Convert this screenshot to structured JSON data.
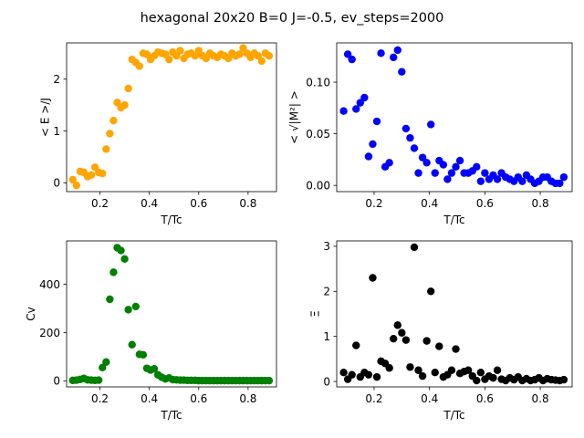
{
  "figure": {
    "suptitle": "hexagonal 20x20  B=0 J=-0.5, ev_steps=2000"
  },
  "chart_data": [
    {
      "type": "scatter",
      "id": "energy",
      "color": "#ffa500",
      "xlabel": "T/Tc",
      "ylabel": "< E >/J",
      "xlim": [
        0.065,
        0.915
      ],
      "ylim": [
        -0.17,
        2.7
      ],
      "xticks": [
        0.2,
        0.4,
        0.6,
        0.8
      ],
      "xtick_labels": [
        "0.2",
        "0.4",
        "0.6",
        "0.8"
      ],
      "yticks": [
        0,
        1,
        2
      ],
      "ytick_labels": [
        "0",
        "1",
        "2"
      ],
      "x": [
        0.09,
        0.105,
        0.12,
        0.135,
        0.15,
        0.165,
        0.18,
        0.195,
        0.21,
        0.225,
        0.24,
        0.255,
        0.27,
        0.285,
        0.3,
        0.315,
        0.33,
        0.345,
        0.36,
        0.375,
        0.39,
        0.405,
        0.42,
        0.435,
        0.45,
        0.465,
        0.48,
        0.495,
        0.51,
        0.525,
        0.54,
        0.555,
        0.57,
        0.585,
        0.6,
        0.615,
        0.63,
        0.645,
        0.66,
        0.675,
        0.69,
        0.705,
        0.72,
        0.735,
        0.75,
        0.765,
        0.78,
        0.795,
        0.81,
        0.825,
        0.84,
        0.855,
        0.87,
        0.885
      ],
      "y": [
        0.06,
        -0.05,
        0.22,
        0.2,
        0.12,
        0.15,
        0.3,
        0.2,
        0.18,
        0.65,
        0.95,
        1.2,
        1.55,
        1.45,
        1.5,
        1.82,
        2.38,
        2.32,
        2.25,
        2.5,
        2.48,
        2.38,
        2.45,
        2.52,
        2.5,
        2.48,
        2.38,
        2.52,
        2.45,
        2.55,
        2.4,
        2.48,
        2.5,
        2.45,
        2.55,
        2.45,
        2.4,
        2.5,
        2.45,
        2.42,
        2.48,
        2.45,
        2.4,
        2.5,
        2.45,
        2.48,
        2.6,
        2.5,
        2.42,
        2.5,
        2.45,
        2.35,
        2.5,
        2.45
      ]
    },
    {
      "type": "scatter",
      "id": "magnetization",
      "color": "#0000ff",
      "xlabel": "T/Tc",
      "ylabel": "< √|M²| >",
      "xlim": [
        0.065,
        0.915
      ],
      "ylim": [
        -0.006,
        0.138
      ],
      "xticks": [
        0.2,
        0.4,
        0.6,
        0.8
      ],
      "xtick_labels": [
        "0.2",
        "0.4",
        "0.6",
        "0.8"
      ],
      "yticks": [
        0.0,
        0.05,
        0.1
      ],
      "ytick_labels": [
        "0.00",
        "0.05",
        "0.10"
      ],
      "x": [
        0.09,
        0.105,
        0.12,
        0.135,
        0.15,
        0.165,
        0.18,
        0.195,
        0.21,
        0.225,
        0.24,
        0.255,
        0.27,
        0.285,
        0.3,
        0.315,
        0.33,
        0.345,
        0.36,
        0.375,
        0.39,
        0.405,
        0.42,
        0.435,
        0.45,
        0.465,
        0.48,
        0.495,
        0.51,
        0.525,
        0.54,
        0.555,
        0.57,
        0.585,
        0.6,
        0.615,
        0.63,
        0.645,
        0.66,
        0.675,
        0.69,
        0.705,
        0.72,
        0.735,
        0.75,
        0.765,
        0.78,
        0.795,
        0.81,
        0.825,
        0.84,
        0.855,
        0.87,
        0.885
      ],
      "y": [
        0.072,
        0.127,
        0.122,
        0.074,
        0.08,
        0.085,
        0.028,
        0.04,
        0.062,
        0.128,
        0.018,
        0.022,
        0.124,
        0.131,
        0.11,
        0.055,
        0.046,
        0.036,
        0.012,
        0.027,
        0.022,
        0.059,
        0.012,
        0.024,
        0.02,
        0.006,
        0.012,
        0.018,
        0.024,
        0.012,
        0.012,
        0.014,
        0.018,
        0.004,
        0.012,
        0.006,
        0.01,
        0.006,
        0.012,
        0.008,
        0.006,
        0.004,
        0.008,
        0.004,
        0.01,
        0.006,
        0.002,
        0.004,
        0.008,
        0.008,
        0.004,
        0.002,
        0.002,
        0.008
      ]
    },
    {
      "type": "scatter",
      "id": "heat_capacity",
      "color": "#008000",
      "xlabel": "T/Tc",
      "ylabel": "Cv",
      "xlim": [
        0.065,
        0.915
      ],
      "ylim": [
        -25,
        580
      ],
      "xticks": [
        0.2,
        0.4,
        0.6,
        0.8
      ],
      "xtick_labels": [
        "0.2",
        "0.4",
        "0.6",
        "0.8"
      ],
      "yticks": [
        0,
        200,
        400
      ],
      "ytick_labels": [
        "0",
        "200",
        "400"
      ],
      "x": [
        0.09,
        0.105,
        0.12,
        0.135,
        0.15,
        0.165,
        0.18,
        0.195,
        0.21,
        0.225,
        0.24,
        0.255,
        0.27,
        0.285,
        0.3,
        0.315,
        0.33,
        0.345,
        0.36,
        0.375,
        0.39,
        0.405,
        0.42,
        0.435,
        0.45,
        0.465,
        0.48,
        0.495,
        0.51,
        0.525,
        0.54,
        0.555,
        0.57,
        0.585,
        0.6,
        0.615,
        0.63,
        0.645,
        0.66,
        0.675,
        0.69,
        0.705,
        0.72,
        0.735,
        0.75,
        0.765,
        0.78,
        0.795,
        0.81,
        0.825,
        0.84,
        0.855,
        0.87,
        0.885
      ],
      "y": [
        2,
        3,
        6,
        10,
        4,
        3,
        2,
        3,
        55,
        78,
        338,
        450,
        552,
        540,
        505,
        295,
        150,
        308,
        110,
        108,
        52,
        45,
        50,
        25,
        15,
        8,
        12,
        5,
        4,
        3,
        3,
        2,
        2,
        2,
        1,
        1,
        1,
        1,
        1,
        1,
        1,
        1,
        1,
        1,
        1,
        1,
        1,
        1,
        1,
        1,
        1,
        1,
        1,
        1
      ]
    },
    {
      "type": "scatter",
      "id": "susceptibility",
      "color": "#000000",
      "xlabel": "T/Tc",
      "ylabel": "Ξ",
      "xlim": [
        0.065,
        0.915
      ],
      "ylim": [
        -0.12,
        3.12
      ],
      "xticks": [
        0.2,
        0.4,
        0.6,
        0.8
      ],
      "xtick_labels": [
        "0.2",
        "0.4",
        "0.6",
        "0.8"
      ],
      "yticks": [
        0,
        1,
        2,
        3
      ],
      "ytick_labels": [
        "0",
        "1",
        "2",
        "3"
      ],
      "x": [
        0.09,
        0.105,
        0.12,
        0.135,
        0.15,
        0.165,
        0.18,
        0.195,
        0.21,
        0.225,
        0.24,
        0.255,
        0.27,
        0.285,
        0.3,
        0.315,
        0.33,
        0.345,
        0.36,
        0.375,
        0.39,
        0.405,
        0.42,
        0.435,
        0.45,
        0.465,
        0.48,
        0.495,
        0.51,
        0.525,
        0.54,
        0.555,
        0.57,
        0.585,
        0.6,
        0.615,
        0.63,
        0.645,
        0.66,
        0.675,
        0.69,
        0.705,
        0.72,
        0.735,
        0.75,
        0.765,
        0.78,
        0.795,
        0.81,
        0.825,
        0.84,
        0.855,
        0.87,
        0.885
      ],
      "y": [
        0.2,
        0.05,
        0.15,
        0.8,
        0.1,
        0.2,
        0.15,
        2.3,
        0.1,
        0.45,
        0.4,
        0.3,
        0.95,
        1.25,
        1.08,
        0.92,
        0.32,
        2.98,
        0.25,
        0.12,
        0.9,
        2.0,
        0.2,
        0.78,
        0.1,
        0.15,
        0.25,
        0.72,
        0.18,
        0.22,
        0.25,
        0.12,
        0.02,
        0.2,
        0.05,
        0.12,
        0.08,
        0.25,
        0.05,
        0.02,
        0.08,
        0.04,
        0.1,
        0.02,
        0.06,
        0.02,
        0.04,
        0.08,
        0.02,
        0.06,
        0.04,
        0.03,
        0.02,
        0.04
      ]
    }
  ]
}
